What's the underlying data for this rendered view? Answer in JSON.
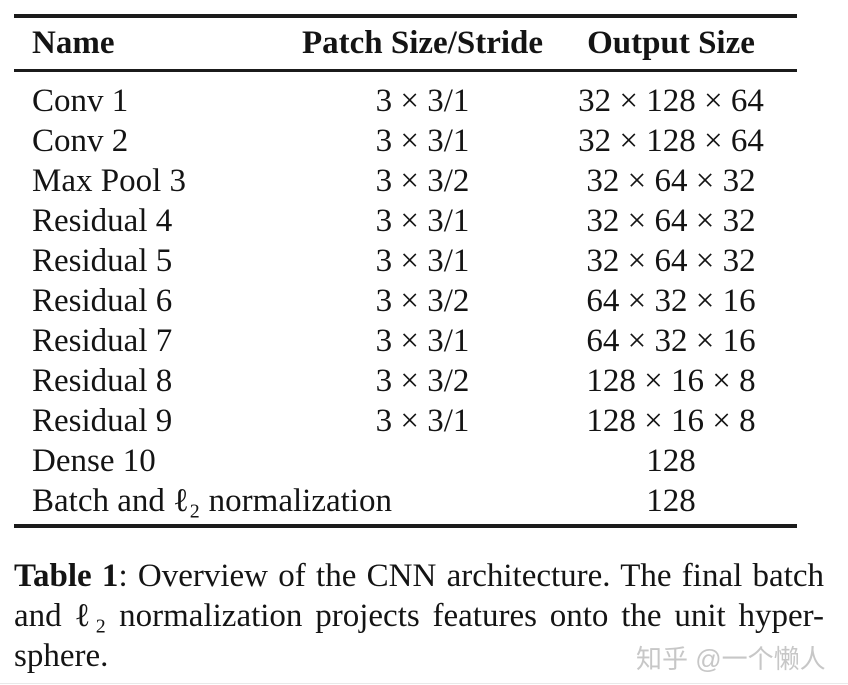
{
  "table": {
    "columns": {
      "name": "Name",
      "patch": "Patch Size/Stride",
      "output": "Output Size"
    },
    "rows": [
      {
        "name": "Conv 1",
        "patch": "3 × 3/1",
        "output": "32 × 128 × 64"
      },
      {
        "name": "Conv 2",
        "patch": "3 × 3/1",
        "output": "32 × 128 × 64"
      },
      {
        "name": "Max Pool 3",
        "patch": "3 × 3/2",
        "output": "32 × 64 × 32"
      },
      {
        "name": "Residual 4",
        "patch": "3 × 3/1",
        "output": "32 × 64 × 32"
      },
      {
        "name": "Residual 5",
        "patch": "3 × 3/1",
        "output": "32 × 64 × 32"
      },
      {
        "name": "Residual 6",
        "patch": "3 × 3/2",
        "output": "64 × 32 × 16"
      },
      {
        "name": "Residual 7",
        "patch": "3 × 3/1",
        "output": "64 × 32 × 16"
      },
      {
        "name": "Residual 8",
        "patch": "3 × 3/2",
        "output": "128 × 16 × 8"
      },
      {
        "name": "Residual 9",
        "patch": "3 × 3/1",
        "output": "128 × 16 × 8"
      },
      {
        "name": "Dense 10",
        "patch": "",
        "output": "128"
      },
      {
        "name": "Batch and ℓ₂ normalization",
        "patch": "",
        "output": "128"
      }
    ]
  },
  "caption": {
    "label": "Table 1",
    "line1_rest": ": Overview of the CNN architecture.  The final batch",
    "line2": "and ℓ₂ normalization projects features onto the unit hyper-",
    "line3": "sphere."
  },
  "watermark": {
    "text": "知乎 @一个懒人"
  },
  "colors": {
    "text": "#141414",
    "rule": "#1b1b1b",
    "background": "#ffffff",
    "watermark": "#c7c7c7"
  }
}
